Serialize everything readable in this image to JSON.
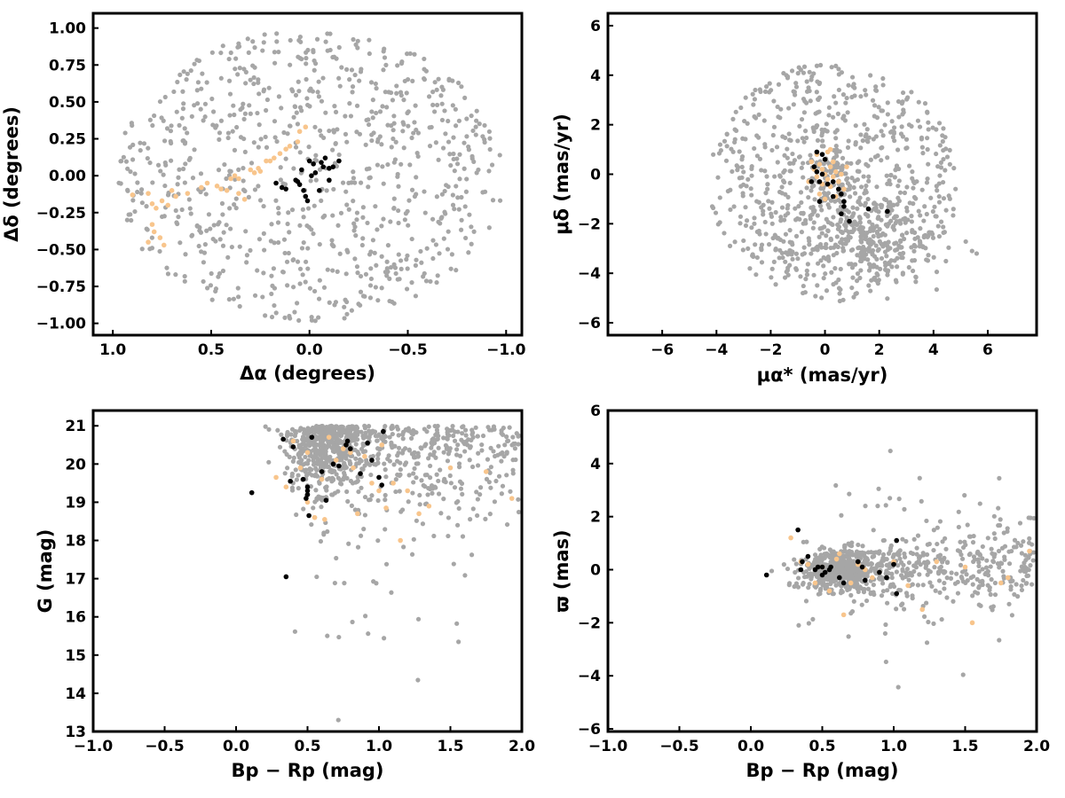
{
  "colors": {
    "field": "#a6a6a6",
    "candidate": "#f8c58c",
    "member": "#000000",
    "frame": "#000000"
  },
  "chart_data": [
    {
      "id": "panel-position",
      "type": "scatter",
      "xlabel": "Δα (degrees)",
      "ylabel": "Δδ (degrees)",
      "xlim": [
        1.1,
        -1.08
      ],
      "ylim": [
        -1.08,
        1.1
      ],
      "xticks": [
        1.0,
        0.5,
        0.0,
        -0.5,
        -1.0
      ],
      "xtick_labels": [
        "1.0",
        "0.5",
        "0.0",
        "−0.5",
        "−1.0"
      ],
      "yticks": [
        -1.0,
        -0.75,
        -0.5,
        -0.25,
        0.0,
        0.25,
        0.5,
        0.75,
        1.0
      ],
      "ytick_labels": [
        "−1.00",
        "−0.75",
        "−0.50",
        "−0.25",
        "0.00",
        "0.25",
        "0.50",
        "0.75",
        "1.00"
      ],
      "field_region": {
        "shape": "ellipse",
        "center": [
          0.0,
          0.0
        ],
        "semi_axes": [
          1.0,
          1.0
        ],
        "count": 820
      },
      "candidates": [
        [
          0.9,
          -0.13
        ],
        [
          0.82,
          -0.12
        ],
        [
          0.8,
          -0.19
        ],
        [
          0.78,
          -0.22
        ],
        [
          0.75,
          -0.17
        ],
        [
          0.72,
          -0.2
        ],
        [
          0.8,
          -0.33
        ],
        [
          0.79,
          -0.38
        ],
        [
          0.76,
          -0.42
        ],
        [
          0.74,
          -0.47
        ],
        [
          0.82,
          -0.45
        ],
        [
          0.7,
          -0.1
        ],
        [
          0.68,
          -0.14
        ],
        [
          0.62,
          -0.12
        ],
        [
          0.55,
          -0.08
        ],
        [
          0.52,
          -0.05
        ],
        [
          0.47,
          -0.07
        ],
        [
          0.45,
          -0.09
        ],
        [
          0.42,
          -0.1
        ],
        [
          0.4,
          -0.02
        ],
        [
          0.38,
          0.0
        ],
        [
          0.36,
          -0.02
        ],
        [
          0.3,
          0.04
        ],
        [
          0.28,
          0.02
        ],
        [
          0.26,
          0.05
        ],
        [
          0.25,
          0.03
        ],
        [
          0.22,
          0.1
        ],
        [
          0.2,
          0.1
        ],
        [
          0.18,
          0.12
        ],
        [
          0.15,
          0.15
        ],
        [
          0.12,
          0.18
        ],
        [
          0.1,
          0.2
        ],
        [
          0.06,
          0.23
        ],
        [
          0.02,
          0.33
        ],
        [
          0.05,
          0.3
        ],
        [
          0.33,
          -0.16
        ],
        [
          0.36,
          -0.12
        ]
      ],
      "members": [
        [
          0.17,
          -0.05
        ],
        [
          0.14,
          -0.08
        ],
        [
          0.12,
          -0.09
        ],
        [
          0.07,
          -0.03
        ],
        [
          0.06,
          -0.04
        ],
        [
          0.04,
          0.04
        ],
        [
          0.05,
          -0.06
        ],
        [
          0.03,
          -0.1
        ],
        [
          0.02,
          -0.14
        ],
        [
          0.01,
          -0.17
        ],
        [
          -0.01,
          0.0
        ],
        [
          -0.02,
          0.08
        ],
        [
          -0.03,
          0.02
        ],
        [
          -0.06,
          0.09
        ],
        [
          -0.07,
          0.06
        ],
        [
          -0.08,
          0.12
        ],
        [
          -0.05,
          -0.1
        ],
        [
          -0.1,
          0.05
        ],
        [
          -0.12,
          0.06
        ],
        [
          -0.15,
          0.1
        ],
        [
          -0.1,
          -0.03
        ],
        [
          0.0,
          0.1
        ]
      ]
    },
    {
      "id": "panel-proper-motion",
      "type": "scatter",
      "xlabel": "μα* (mas/yr)",
      "ylabel": "μδ (mas/yr)",
      "xlim": [
        -8.0,
        7.8
      ],
      "ylim": [
        -6.5,
        6.5
      ],
      "xticks": [
        -6,
        -4,
        -2,
        0,
        2,
        4,
        6
      ],
      "xtick_labels": [
        "−6",
        "−4",
        "−2",
        "0",
        "2",
        "4",
        "6"
      ],
      "yticks": [
        -6,
        -4,
        -2,
        0,
        2,
        4,
        6
      ],
      "ytick_labels": [
        "−6",
        "−4",
        "−2",
        "0",
        "2",
        "4",
        "6"
      ],
      "field_region": {
        "shape": "circle-clump",
        "center": [
          0.3,
          -0.3
        ],
        "radius": 4.8,
        "clump_center": [
          1.8,
          -2.6
        ],
        "clump_sigma": [
          1.3,
          0.9
        ],
        "count": 700,
        "clump_count": 260
      },
      "candidates": [
        [
          -0.2,
          0.4
        ],
        [
          -0.1,
          0.2
        ],
        [
          0.0,
          0.0
        ],
        [
          0.1,
          -0.2
        ],
        [
          0.2,
          0.3
        ],
        [
          0.3,
          -0.1
        ],
        [
          0.4,
          0.1
        ],
        [
          -0.3,
          -0.1
        ],
        [
          -0.4,
          0.2
        ],
        [
          0.5,
          -0.3
        ],
        [
          0.6,
          0.0
        ],
        [
          0.2,
          -0.5
        ],
        [
          -0.1,
          -0.4
        ],
        [
          0.0,
          0.6
        ],
        [
          0.3,
          0.5
        ],
        [
          -0.6,
          -0.3
        ],
        [
          0.7,
          -0.6
        ],
        [
          0.1,
          0.9
        ],
        [
          -0.2,
          -0.8
        ],
        [
          0.4,
          -0.9
        ],
        [
          0.0,
          -1.0
        ],
        [
          -0.5,
          0.5
        ],
        [
          0.8,
          0.3
        ],
        [
          -0.3,
          0.8
        ],
        [
          0.2,
          1.0
        ]
      ],
      "members": [
        [
          -0.4,
          0.3
        ],
        [
          -0.3,
          0.1
        ],
        [
          -0.2,
          -0.3
        ],
        [
          -0.1,
          0.0
        ],
        [
          0.1,
          -0.4
        ],
        [
          0.3,
          -0.3
        ],
        [
          0.5,
          -0.6
        ],
        [
          0.6,
          -0.8
        ],
        [
          0.7,
          -1.1
        ],
        [
          0.6,
          -1.6
        ],
        [
          0.7,
          -1.3
        ],
        [
          0.9,
          -1.9
        ],
        [
          -0.2,
          -1.1
        ],
        [
          0.3,
          -0.9
        ],
        [
          1.6,
          -1.4
        ],
        [
          2.3,
          -1.5
        ],
        [
          -0.3,
          0.9
        ],
        [
          -0.1,
          0.8
        ],
        [
          0.0,
          0.6
        ],
        [
          -0.5,
          -0.3
        ]
      ]
    },
    {
      "id": "panel-cmd",
      "type": "scatter",
      "xlabel": "Bp − Rp (mag)",
      "ylabel": "G (mag)",
      "xlim": [
        -1.0,
        2.0
      ],
      "ylim": [
        13.0,
        21.4
      ],
      "xticks": [
        -1.0,
        -0.5,
        0.0,
        0.5,
        1.0,
        1.5,
        2.0
      ],
      "xtick_labels": [
        "−1.0",
        "−0.5",
        "0.0",
        "0.5",
        "1.0",
        "1.5",
        "2.0"
      ],
      "yticks": [
        13,
        14,
        15,
        16,
        17,
        18,
        19,
        20,
        21
      ],
      "ytick_labels": [
        "13",
        "14",
        "15",
        "16",
        "17",
        "18",
        "19",
        "20",
        "21"
      ],
      "field_region": {
        "shape": "cmd",
        "clump_center": [
          0.65,
          20.0
        ],
        "clump_sigma": [
          0.15,
          0.5
        ],
        "count": 900
      },
      "candidates": [
        [
          0.28,
          19.65
        ],
        [
          0.35,
          19.4
        ],
        [
          0.45,
          19.9
        ],
        [
          0.5,
          19.0
        ],
        [
          0.55,
          18.6
        ],
        [
          0.6,
          19.6
        ],
        [
          0.62,
          18.55
        ],
        [
          0.7,
          20.1
        ],
        [
          0.75,
          20.4
        ],
        [
          0.8,
          20.3
        ],
        [
          0.82,
          19.9
        ],
        [
          0.85,
          18.7
        ],
        [
          0.9,
          20.2
        ],
        [
          0.95,
          19.5
        ],
        [
          1.0,
          19.3
        ],
        [
          1.02,
          20.5
        ],
        [
          1.05,
          18.85
        ],
        [
          1.1,
          19.5
        ],
        [
          1.15,
          18.0
        ],
        [
          1.2,
          19.3
        ],
        [
          1.28,
          18.7
        ],
        [
          1.35,
          18.9
        ],
        [
          1.5,
          19.9
        ],
        [
          1.75,
          19.8
        ],
        [
          1.93,
          19.1
        ],
        [
          0.4,
          20.6
        ],
        [
          0.5,
          20.3
        ],
        [
          0.65,
          20.7
        ]
      ],
      "members": [
        [
          0.11,
          19.25
        ],
        [
          0.33,
          20.65
        ],
        [
          0.35,
          17.05
        ],
        [
          0.38,
          19.55
        ],
        [
          0.4,
          20.45
        ],
        [
          0.47,
          19.6
        ],
        [
          0.5,
          19.4
        ],
        [
          0.5,
          19.3
        ],
        [
          0.5,
          19.2
        ],
        [
          0.51,
          18.65
        ],
        [
          0.49,
          19.1
        ],
        [
          0.53,
          20.7
        ],
        [
          0.6,
          19.8
        ],
        [
          0.63,
          19.05
        ],
        [
          0.68,
          20.0
        ],
        [
          0.72,
          19.95
        ],
        [
          0.77,
          20.5
        ],
        [
          0.78,
          20.6
        ],
        [
          0.8,
          20.4
        ],
        [
          0.87,
          19.75
        ],
        [
          0.92,
          20.55
        ],
        [
          0.95,
          20.1
        ],
        [
          1.0,
          19.65
        ],
        [
          1.02,
          19.45
        ],
        [
          1.03,
          20.85
        ]
      ]
    },
    {
      "id": "panel-parallax",
      "type": "scatter",
      "xlabel": "Bp − Rp (mag)",
      "ylabel": "ϖ (mas)",
      "xlim": [
        -1.0,
        2.0
      ],
      "ylim": [
        -6.1,
        6.0
      ],
      "xticks": [
        -1.0,
        -0.5,
        0.0,
        0.5,
        1.0,
        1.5,
        2.0
      ],
      "xtick_labels": [
        "−1.0",
        "−0.5",
        "0.0",
        "0.5",
        "1.0",
        "1.5",
        "2.0"
      ],
      "yticks": [
        -6,
        -4,
        -2,
        0,
        2,
        4,
        6
      ],
      "ytick_labels": [
        "−6",
        "−4",
        "−2",
        "0",
        "2",
        "4",
        "6"
      ],
      "field_region": {
        "shape": "parallax",
        "clump_center": [
          0.65,
          0.0
        ],
        "clump_sigma": [
          0.15,
          0.4
        ],
        "count": 900
      },
      "candidates": [
        [
          0.28,
          1.2
        ],
        [
          0.35,
          0.3
        ],
        [
          0.45,
          -0.5
        ],
        [
          0.5,
          0.1
        ],
        [
          0.55,
          -0.8
        ],
        [
          0.6,
          0.4
        ],
        [
          0.65,
          -1.7
        ],
        [
          0.7,
          -0.5
        ],
        [
          0.75,
          0.2
        ],
        [
          0.8,
          0.0
        ],
        [
          0.85,
          -0.3
        ],
        [
          0.9,
          -0.1
        ],
        [
          1.0,
          0.3
        ],
        [
          1.1,
          -0.6
        ],
        [
          1.2,
          -1.5
        ],
        [
          1.3,
          0.3
        ],
        [
          1.5,
          0.1
        ],
        [
          1.55,
          -2.0
        ],
        [
          1.75,
          -0.5
        ],
        [
          1.8,
          -0.3
        ],
        [
          1.95,
          0.7
        ],
        [
          0.4,
          0.2
        ],
        [
          0.62,
          0.6
        ]
      ],
      "members": [
        [
          0.11,
          -0.2
        ],
        [
          0.33,
          1.5
        ],
        [
          0.35,
          0.0
        ],
        [
          0.4,
          0.5
        ],
        [
          0.45,
          0.0
        ],
        [
          0.5,
          -0.2
        ],
        [
          0.5,
          0.1
        ],
        [
          0.52,
          -0.1
        ],
        [
          0.55,
          0.0
        ],
        [
          0.62,
          -0.3
        ],
        [
          0.65,
          -0.5
        ],
        [
          0.75,
          0.3
        ],
        [
          0.78,
          0.1
        ],
        [
          0.8,
          -0.4
        ],
        [
          0.9,
          -0.1
        ],
        [
          0.95,
          -0.3
        ],
        [
          1.0,
          0.2
        ],
        [
          1.02,
          1.1
        ],
        [
          1.02,
          -0.9
        ],
        [
          0.36,
          0.3
        ],
        [
          0.47,
          0.1
        ],
        [
          0.56,
          0.1
        ]
      ]
    }
  ]
}
